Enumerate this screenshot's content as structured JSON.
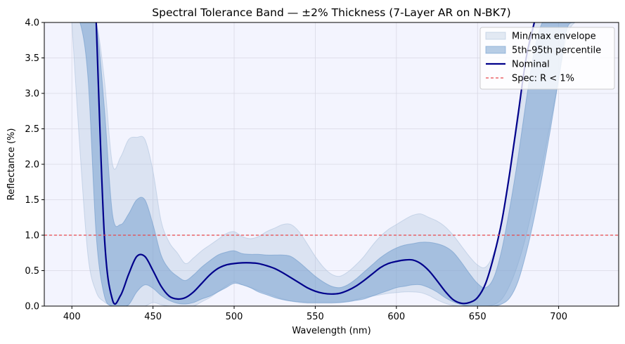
{
  "chart_data": {
    "type": "area",
    "title": "Spectral Tolerance Band — ±2% Thickness (7-Layer AR on N-BK7)",
    "xlabel": "Wavelength (nm)",
    "ylabel": "Reflectance (%)",
    "xlim": [
      383,
      737
    ],
    "ylim": [
      0,
      4
    ],
    "xticks": [
      "400",
      "450",
      "500",
      "550",
      "600",
      "650",
      "700"
    ],
    "yticks": [
      "0.0",
      "0.5",
      "1.0",
      "1.5",
      "2.0",
      "2.5",
      "3.0",
      "3.5",
      "4.0"
    ],
    "grid": true,
    "legend_position": "top-right",
    "background_color": "#f3f4fe",
    "x": [
      400,
      405,
      410,
      415,
      420,
      425,
      430,
      435,
      440,
      445,
      450,
      455,
      460,
      465,
      470,
      475,
      480,
      485,
      490,
      495,
      500,
      505,
      510,
      515,
      520,
      525,
      530,
      535,
      540,
      545,
      550,
      555,
      560,
      565,
      570,
      575,
      580,
      585,
      590,
      595,
      600,
      605,
      610,
      615,
      620,
      625,
      630,
      635,
      640,
      645,
      650,
      655,
      660,
      665,
      670,
      675,
      680,
      685,
      690,
      695,
      700,
      705,
      710,
      715,
      720
    ],
    "series": [
      {
        "name": "Min/max envelope",
        "kind": "band",
        "color": "#b0c4de",
        "opacity": 0.35,
        "lower": [
          4.0,
          2.2,
          0.7,
          0.2,
          0.06,
          0.0,
          0.0,
          0.0,
          0.0,
          0.0,
          0.05,
          0.02,
          0.0,
          0.0,
          0.0,
          0.0,
          0.06,
          0.12,
          0.2,
          0.28,
          0.34,
          0.3,
          0.26,
          0.22,
          0.18,
          0.14,
          0.1,
          0.07,
          0.05,
          0.04,
          0.04,
          0.04,
          0.04,
          0.05,
          0.07,
          0.09,
          0.12,
          0.14,
          0.16,
          0.18,
          0.19,
          0.2,
          0.2,
          0.19,
          0.15,
          0.09,
          0.04,
          0.01,
          0.0,
          0.0,
          0.0,
          0.0,
          0.02,
          0.1,
          0.3,
          0.6,
          1.0,
          1.5,
          2.0,
          2.6,
          3.2,
          3.8,
          4.0,
          4.0,
          4.0
        ],
        "upper": [
          4.0,
          4.0,
          4.0,
          4.0,
          3.2,
          2.0,
          2.1,
          2.35,
          2.38,
          2.35,
          1.9,
          1.2,
          0.9,
          0.75,
          0.6,
          0.68,
          0.78,
          0.86,
          0.94,
          1.02,
          1.05,
          0.98,
          0.95,
          0.98,
          1.05,
          1.1,
          1.15,
          1.15,
          1.05,
          0.88,
          0.7,
          0.55,
          0.45,
          0.42,
          0.48,
          0.58,
          0.7,
          0.85,
          0.98,
          1.08,
          1.15,
          1.22,
          1.28,
          1.3,
          1.25,
          1.2,
          1.12,
          1.0,
          0.85,
          0.7,
          0.58,
          0.55,
          0.75,
          1.2,
          1.9,
          2.6,
          3.3,
          4.0,
          4.0,
          4.0,
          4.0,
          4.0,
          4.0,
          4.0,
          4.0
        ]
      },
      {
        "name": "5th–95th percentile",
        "kind": "band",
        "color": "#6f9bcb",
        "opacity": 0.5,
        "lower": [
          4.0,
          4.0,
          3.2,
          1.0,
          0.15,
          0.0,
          0.0,
          0.02,
          0.2,
          0.3,
          0.25,
          0.15,
          0.08,
          0.04,
          0.03,
          0.05,
          0.1,
          0.14,
          0.2,
          0.26,
          0.32,
          0.3,
          0.26,
          0.2,
          0.16,
          0.12,
          0.09,
          0.07,
          0.06,
          0.05,
          0.05,
          0.05,
          0.05,
          0.05,
          0.06,
          0.08,
          0.1,
          0.14,
          0.18,
          0.22,
          0.26,
          0.28,
          0.3,
          0.3,
          0.26,
          0.2,
          0.12,
          0.06,
          0.02,
          0.0,
          0.0,
          0.0,
          0.0,
          0.03,
          0.12,
          0.35,
          0.75,
          1.25,
          1.85,
          2.5,
          3.2,
          3.9,
          4.0,
          4.0,
          4.0
        ],
        "upper": [
          4.0,
          4.0,
          4.0,
          4.0,
          2.8,
          1.3,
          1.15,
          1.3,
          1.5,
          1.5,
          1.15,
          0.72,
          0.52,
          0.42,
          0.36,
          0.44,
          0.55,
          0.64,
          0.72,
          0.76,
          0.78,
          0.74,
          0.73,
          0.73,
          0.72,
          0.72,
          0.72,
          0.7,
          0.62,
          0.52,
          0.42,
          0.34,
          0.28,
          0.26,
          0.3,
          0.38,
          0.48,
          0.58,
          0.68,
          0.76,
          0.82,
          0.86,
          0.88,
          0.9,
          0.9,
          0.88,
          0.84,
          0.76,
          0.62,
          0.46,
          0.32,
          0.26,
          0.4,
          0.8,
          1.4,
          2.1,
          2.9,
          3.6,
          4.0,
          4.0,
          4.0,
          4.0,
          4.0,
          4.0,
          4.0
        ]
      },
      {
        "name": "Nominal",
        "kind": "line",
        "color": "#00008b",
        "lower": null,
        "upper": null,
        "values": [
          null,
          null,
          null,
          4.0,
          1.0,
          0.09,
          0.15,
          0.45,
          0.7,
          0.7,
          0.5,
          0.28,
          0.14,
          0.1,
          0.12,
          0.2,
          0.32,
          0.44,
          0.53,
          0.58,
          0.6,
          0.61,
          0.61,
          0.6,
          0.57,
          0.53,
          0.47,
          0.4,
          0.33,
          0.26,
          0.21,
          0.18,
          0.17,
          0.18,
          0.22,
          0.28,
          0.36,
          0.45,
          0.54,
          0.6,
          0.63,
          0.65,
          0.65,
          0.6,
          0.5,
          0.36,
          0.21,
          0.09,
          0.04,
          0.05,
          0.12,
          0.32,
          0.7,
          1.2,
          1.9,
          2.7,
          3.5,
          4.0,
          null,
          null,
          null,
          null,
          null,
          null,
          null
        ]
      },
      {
        "name": "Spec: R < 1%",
        "kind": "hline",
        "color": "#e8474c",
        "value": 1.0
      }
    ]
  }
}
